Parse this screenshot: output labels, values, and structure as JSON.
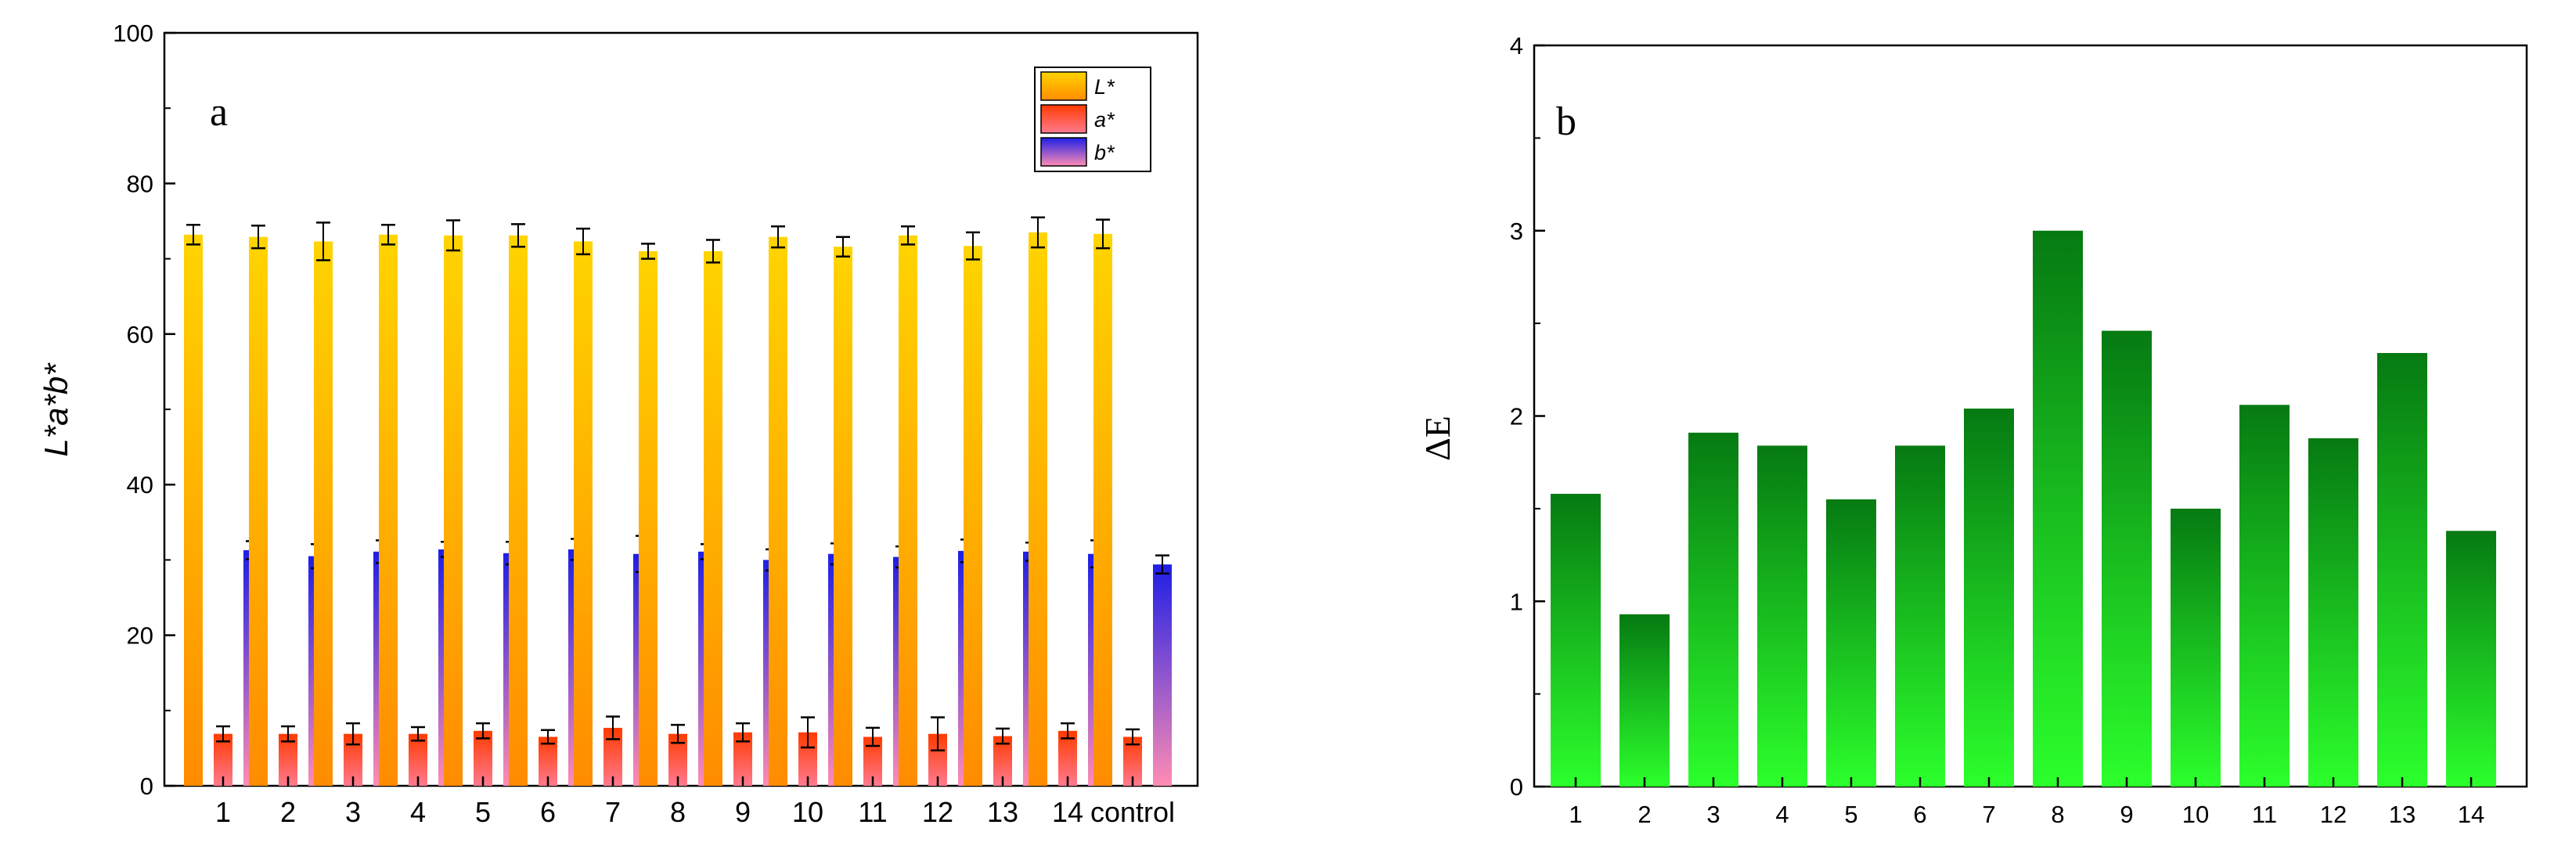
{
  "colors": {
    "L_top": "#ffd400",
    "L_bottom": "#ff8c00",
    "a_top": "#ff3a00",
    "a_bottom": "#ff7a90",
    "b_top": "#1e1ee6",
    "b_bottom": "#ff8cb4",
    "E_top": "#067a12",
    "E_bottom": "#2cff2c",
    "error": "#000000",
    "axis": "#000000"
  },
  "chart_data": [
    {
      "type": "bar",
      "panel_label": "a",
      "categories": [
        "1",
        "2",
        "3",
        "4",
        "5",
        "6",
        "7",
        "8",
        "9",
        "10",
        "11",
        "12",
        "13",
        "14",
        "control"
      ],
      "series": [
        {
          "name": "L*",
          "legend_label": "L*",
          "values": [
            73.2,
            72.9,
            72.3,
            73.2,
            73.1,
            73.1,
            72.3,
            71.0,
            71.0,
            72.9,
            71.6,
            73.1,
            71.7,
            73.5,
            73.3
          ],
          "errors": [
            1.3,
            1.5,
            2.5,
            1.3,
            2.0,
            1.5,
            1.7,
            1.0,
            1.5,
            1.4,
            1.3,
            1.2,
            1.8,
            2.0,
            1.9
          ]
        },
        {
          "name": "a*",
          "legend_label": "a*",
          "values": [
            6.9,
            6.9,
            6.9,
            6.9,
            7.3,
            6.5,
            7.7,
            6.9,
            7.1,
            7.1,
            6.5,
            6.9,
            6.6,
            7.3,
            6.5
          ],
          "errors": [
            1.0,
            1.0,
            1.4,
            0.9,
            1.0,
            0.9,
            1.5,
            1.2,
            1.2,
            2.0,
            1.2,
            2.2,
            1.0,
            1.0,
            1.0
          ]
        },
        {
          "name": "b*",
          "legend_label": "b*",
          "values": [
            31.3,
            30.5,
            31.1,
            31.4,
            30.9,
            31.4,
            30.8,
            31.1,
            30.0,
            30.8,
            30.4,
            31.2,
            31.1,
            30.8,
            29.4
          ],
          "errors": [
            1.2,
            1.6,
            1.5,
            1.0,
            1.5,
            1.4,
            2.4,
            1.0,
            1.4,
            1.4,
            1.4,
            1.5,
            1.2,
            1.8,
            1.2
          ]
        }
      ],
      "ylabel": "L*a*b*",
      "xlabel": "",
      "ylim": [
        0,
        100
      ],
      "yticks": [
        "0",
        "20",
        "40",
        "60",
        "80",
        "100"
      ],
      "legend_position": "top-right"
    },
    {
      "type": "bar",
      "panel_label": "b",
      "categories": [
        "1",
        "2",
        "3",
        "4",
        "5",
        "6",
        "7",
        "8",
        "9",
        "10",
        "11",
        "12",
        "13",
        "14"
      ],
      "series": [
        {
          "name": "ΔE",
          "values": [
            1.58,
            0.93,
            1.91,
            1.84,
            1.55,
            1.84,
            2.04,
            3.0,
            2.46,
            1.5,
            2.06,
            1.88,
            2.34,
            1.38
          ]
        }
      ],
      "ylabel": "ΔE",
      "xlabel": "",
      "ylim": [
        0,
        4
      ],
      "yticks": [
        "0",
        "1",
        "2",
        "3",
        "4"
      ]
    }
  ]
}
